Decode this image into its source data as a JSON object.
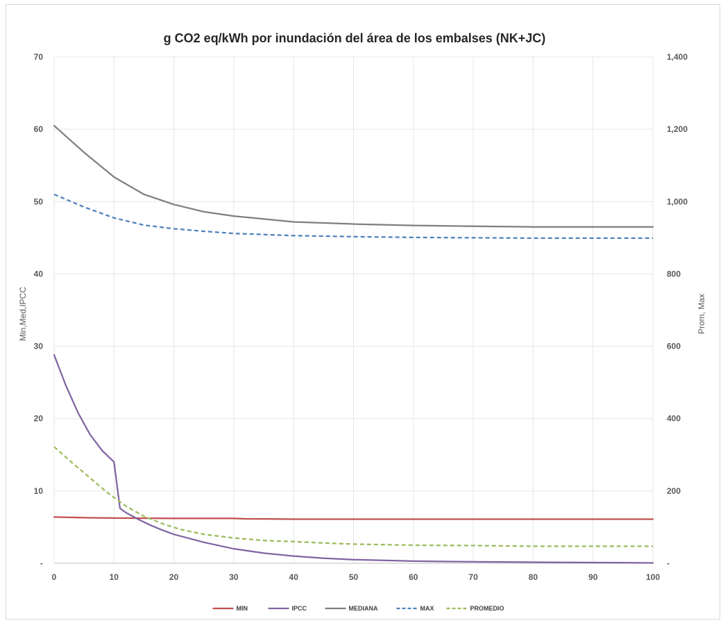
{
  "chart_data": {
    "type": "line",
    "title": "g CO2 eq/kWh por inundación del área de los embalses (NK+JC)",
    "ylabel_left": "Min,Med,IPCC",
    "ylabel_right": "Prom, Max",
    "xlim": [
      0,
      100
    ],
    "ylim_left": [
      0,
      70
    ],
    "ylim_right": [
      0,
      1400
    ],
    "x_ticks": [
      "0",
      "10",
      "20",
      "30",
      "40",
      "50",
      "60",
      "70",
      "80",
      "90",
      "100"
    ],
    "y_ticks_left": [
      "-",
      "10",
      "20",
      "30",
      "40",
      "50",
      "60",
      "70"
    ],
    "y_ticks_right": [
      "-",
      "200",
      "400",
      "600",
      "800",
      "1,000",
      "1,200",
      "1,400"
    ],
    "grid": true,
    "legend_position": "bottom",
    "series": [
      {
        "name": "MIN",
        "axis": "left",
        "color": "#c0504d",
        "dash": "solid",
        "points": [
          [
            0,
            6.4
          ],
          [
            5,
            6.3
          ],
          [
            10,
            6.25
          ],
          [
            20,
            6.2
          ],
          [
            30,
            6.2
          ],
          [
            32,
            6.15
          ],
          [
            40,
            6.1
          ],
          [
            60,
            6.1
          ],
          [
            80,
            6.1
          ],
          [
            100,
            6.1
          ]
        ]
      },
      {
        "name": "IPCC",
        "axis": "left",
        "color": "#8064a2",
        "dash": "solid",
        "points": [
          [
            0,
            28.8
          ],
          [
            2,
            24.5
          ],
          [
            4,
            20.8
          ],
          [
            6,
            17.8
          ],
          [
            8,
            15.6
          ],
          [
            10,
            14.0
          ],
          [
            11,
            7.6
          ],
          [
            12,
            7.0
          ],
          [
            14,
            6.1
          ],
          [
            16,
            5.3
          ],
          [
            18,
            4.6
          ],
          [
            20,
            4.0
          ],
          [
            25,
            2.9
          ],
          [
            30,
            2.0
          ],
          [
            35,
            1.4
          ],
          [
            40,
            1.0
          ],
          [
            45,
            0.7
          ],
          [
            50,
            0.5
          ],
          [
            60,
            0.3
          ],
          [
            70,
            0.2
          ],
          [
            80,
            0.15
          ],
          [
            90,
            0.1
          ],
          [
            100,
            0.05
          ]
        ]
      },
      {
        "name": "MEDIANA",
        "axis": "left",
        "color": "#7f7f7f",
        "dash": "solid",
        "points": [
          [
            0,
            60.5
          ],
          [
            5,
            56.8
          ],
          [
            10,
            53.4
          ],
          [
            15,
            51.0
          ],
          [
            20,
            49.6
          ],
          [
            25,
            48.6
          ],
          [
            30,
            48.0
          ],
          [
            35,
            47.6
          ],
          [
            40,
            47.2
          ],
          [
            50,
            46.9
          ],
          [
            60,
            46.7
          ],
          [
            70,
            46.6
          ],
          [
            80,
            46.5
          ],
          [
            90,
            46.5
          ],
          [
            100,
            46.5
          ]
        ]
      },
      {
        "name": "MAX",
        "axis": "right",
        "color": "#4f81bd",
        "dash": "dashed",
        "points": [
          [
            0,
            1020
          ],
          [
            5,
            985
          ],
          [
            10,
            955
          ],
          [
            15,
            935
          ],
          [
            20,
            925
          ],
          [
            25,
            918
          ],
          [
            30,
            912
          ],
          [
            40,
            906
          ],
          [
            50,
            903
          ],
          [
            60,
            901
          ],
          [
            70,
            900
          ],
          [
            80,
            899
          ],
          [
            90,
            899
          ],
          [
            100,
            899
          ]
        ]
      },
      {
        "name": "PROMEDIO",
        "axis": "right",
        "color": "#9bbb59",
        "dash": "dashed",
        "points": [
          [
            0,
            322
          ],
          [
            3,
            278
          ],
          [
            6,
            236
          ],
          [
            9,
            194
          ],
          [
            12,
            158
          ],
          [
            15,
            130
          ],
          [
            18,
            110
          ],
          [
            21,
            94
          ],
          [
            25,
            80
          ],
          [
            30,
            70
          ],
          [
            35,
            63
          ],
          [
            40,
            60
          ],
          [
            45,
            56
          ],
          [
            50,
            53
          ],
          [
            60,
            50
          ],
          [
            70,
            49
          ],
          [
            80,
            47
          ],
          [
            90,
            47
          ],
          [
            100,
            47
          ]
        ]
      }
    ]
  }
}
